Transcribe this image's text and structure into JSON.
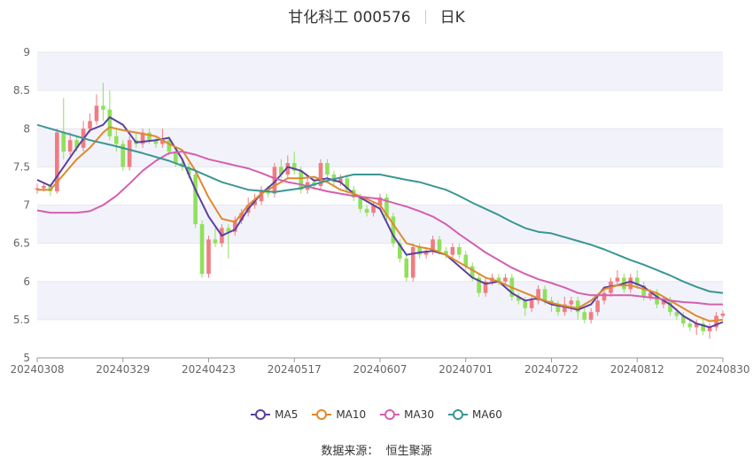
{
  "header": {
    "title": "甘化科工 000576",
    "period": "日K"
  },
  "source": {
    "label": "数据来源：",
    "value": "恒生聚源"
  },
  "colors": {
    "up": "#f07c82",
    "down": "#91e05c",
    "MA5": "#5b3fa0",
    "MA10": "#e0892e",
    "MA30": "#d45fb0",
    "MA60": "#3a9695",
    "band": "#f2f3fa"
  },
  "chart_data": {
    "type": "candlestick",
    "ylim": [
      5,
      9
    ],
    "yticks": [
      5,
      5.5,
      6,
      6.5,
      7,
      7.5,
      8,
      8.5,
      9
    ],
    "xticks": [
      "20240308",
      "20240329",
      "20240423",
      "20240517",
      "20240607",
      "20240701",
      "20240722",
      "20240812",
      "20240830"
    ],
    "legend": [
      {
        "key": "MA5",
        "name": "MA5"
      },
      {
        "key": "MA10",
        "name": "MA10"
      },
      {
        "key": "MA30",
        "name": "MA30"
      },
      {
        "key": "MA60",
        "name": "MA60"
      }
    ],
    "ma": {
      "MA5": [
        [
          0,
          7.33
        ],
        [
          2,
          7.25
        ],
        [
          4,
          7.5
        ],
        [
          6,
          7.75
        ],
        [
          8,
          7.98
        ],
        [
          10,
          8.05
        ],
        [
          11,
          8.15
        ],
        [
          13,
          8.05
        ],
        [
          15,
          7.82
        ],
        [
          18,
          7.85
        ],
        [
          20,
          7.88
        ],
        [
          22,
          7.6
        ],
        [
          24,
          7.2
        ],
        [
          26,
          6.85
        ],
        [
          28,
          6.6
        ],
        [
          30,
          6.68
        ],
        [
          32,
          6.95
        ],
        [
          34,
          7.15
        ],
        [
          36,
          7.3
        ],
        [
          38,
          7.5
        ],
        [
          40,
          7.45
        ],
        [
          42,
          7.32
        ],
        [
          44,
          7.35
        ],
        [
          46,
          7.3
        ],
        [
          48,
          7.15
        ],
        [
          50,
          7.05
        ],
        [
          52,
          6.95
        ],
        [
          54,
          6.6
        ],
        [
          56,
          6.35
        ],
        [
          58,
          6.38
        ],
        [
          60,
          6.4
        ],
        [
          62,
          6.35
        ],
        [
          64,
          6.2
        ],
        [
          66,
          6.05
        ],
        [
          68,
          5.97
        ],
        [
          70,
          6.0
        ],
        [
          72,
          5.85
        ],
        [
          74,
          5.75
        ],
        [
          76,
          5.78
        ],
        [
          78,
          5.7
        ],
        [
          80,
          5.67
        ],
        [
          82,
          5.63
        ],
        [
          84,
          5.7
        ],
        [
          86,
          5.92
        ],
        [
          88,
          5.95
        ],
        [
          90,
          6.0
        ],
        [
          92,
          5.93
        ],
        [
          94,
          5.8
        ],
        [
          96,
          5.7
        ],
        [
          98,
          5.55
        ],
        [
          100,
          5.45
        ],
        [
          102,
          5.4
        ],
        [
          104,
          5.47
        ]
      ],
      "MA10": [
        [
          0,
          7.2
        ],
        [
          2,
          7.2
        ],
        [
          4,
          7.4
        ],
        [
          6,
          7.6
        ],
        [
          8,
          7.75
        ],
        [
          10,
          7.95
        ],
        [
          11,
          8.02
        ],
        [
          13,
          7.98
        ],
        [
          15,
          7.95
        ],
        [
          18,
          7.9
        ],
        [
          20,
          7.8
        ],
        [
          22,
          7.72
        ],
        [
          24,
          7.45
        ],
        [
          26,
          7.1
        ],
        [
          28,
          6.82
        ],
        [
          30,
          6.78
        ],
        [
          32,
          7.0
        ],
        [
          34,
          7.15
        ],
        [
          36,
          7.25
        ],
        [
          38,
          7.35
        ],
        [
          40,
          7.35
        ],
        [
          42,
          7.37
        ],
        [
          44,
          7.3
        ],
        [
          46,
          7.2
        ],
        [
          48,
          7.15
        ],
        [
          50,
          7.08
        ],
        [
          52,
          7.0
        ],
        [
          54,
          6.75
        ],
        [
          56,
          6.5
        ],
        [
          58,
          6.45
        ],
        [
          60,
          6.42
        ],
        [
          62,
          6.35
        ],
        [
          64,
          6.25
        ],
        [
          66,
          6.15
        ],
        [
          68,
          6.05
        ],
        [
          70,
          6.0
        ],
        [
          72,
          5.92
        ],
        [
          74,
          5.85
        ],
        [
          76,
          5.78
        ],
        [
          78,
          5.72
        ],
        [
          80,
          5.68
        ],
        [
          82,
          5.65
        ],
        [
          84,
          5.75
        ],
        [
          86,
          5.9
        ],
        [
          88,
          5.95
        ],
        [
          90,
          5.95
        ],
        [
          92,
          5.9
        ],
        [
          94,
          5.85
        ],
        [
          96,
          5.75
        ],
        [
          98,
          5.65
        ],
        [
          100,
          5.55
        ],
        [
          102,
          5.48
        ],
        [
          104,
          5.5
        ]
      ],
      "MA30": [
        [
          0,
          6.93
        ],
        [
          2,
          6.9
        ],
        [
          6,
          6.9
        ],
        [
          8,
          6.92
        ],
        [
          10,
          7.0
        ],
        [
          12,
          7.12
        ],
        [
          14,
          7.28
        ],
        [
          16,
          7.45
        ],
        [
          18,
          7.58
        ],
        [
          20,
          7.68
        ],
        [
          22,
          7.7
        ],
        [
          24,
          7.66
        ],
        [
          26,
          7.6
        ],
        [
          28,
          7.56
        ],
        [
          30,
          7.52
        ],
        [
          32,
          7.48
        ],
        [
          34,
          7.42
        ],
        [
          36,
          7.35
        ],
        [
          38,
          7.3
        ],
        [
          40,
          7.27
        ],
        [
          42,
          7.22
        ],
        [
          44,
          7.18
        ],
        [
          46,
          7.15
        ],
        [
          48,
          7.12
        ],
        [
          50,
          7.1
        ],
        [
          52,
          7.08
        ],
        [
          54,
          7.03
        ],
        [
          56,
          6.98
        ],
        [
          58,
          6.92
        ],
        [
          60,
          6.85
        ],
        [
          62,
          6.75
        ],
        [
          64,
          6.62
        ],
        [
          66,
          6.5
        ],
        [
          68,
          6.38
        ],
        [
          70,
          6.28
        ],
        [
          72,
          6.18
        ],
        [
          74,
          6.1
        ],
        [
          76,
          6.03
        ],
        [
          78,
          5.98
        ],
        [
          80,
          5.92
        ],
        [
          82,
          5.85
        ],
        [
          84,
          5.82
        ],
        [
          86,
          5.82
        ],
        [
          88,
          5.82
        ],
        [
          90,
          5.82
        ],
        [
          92,
          5.8
        ],
        [
          94,
          5.78
        ],
        [
          96,
          5.75
        ],
        [
          98,
          5.73
        ],
        [
          100,
          5.72
        ],
        [
          102,
          5.7
        ],
        [
          104,
          5.7
        ]
      ],
      "MA60": [
        [
          0,
          8.05
        ],
        [
          4,
          7.95
        ],
        [
          8,
          7.85
        ],
        [
          12,
          7.77
        ],
        [
          16,
          7.68
        ],
        [
          20,
          7.58
        ],
        [
          24,
          7.45
        ],
        [
          28,
          7.3
        ],
        [
          32,
          7.2
        ],
        [
          36,
          7.17
        ],
        [
          40,
          7.22
        ],
        [
          44,
          7.32
        ],
        [
          48,
          7.4
        ],
        [
          52,
          7.4
        ],
        [
          56,
          7.33
        ],
        [
          58,
          7.3
        ],
        [
          60,
          7.25
        ],
        [
          62,
          7.2
        ],
        [
          64,
          7.12
        ],
        [
          66,
          7.03
        ],
        [
          68,
          6.95
        ],
        [
          70,
          6.87
        ],
        [
          72,
          6.78
        ],
        [
          74,
          6.7
        ],
        [
          76,
          6.65
        ],
        [
          78,
          6.63
        ],
        [
          80,
          6.58
        ],
        [
          82,
          6.53
        ],
        [
          84,
          6.48
        ],
        [
          86,
          6.42
        ],
        [
          88,
          6.35
        ],
        [
          90,
          6.28
        ],
        [
          92,
          6.22
        ],
        [
          94,
          6.15
        ],
        [
          96,
          6.08
        ],
        [
          98,
          6.0
        ],
        [
          100,
          5.93
        ],
        [
          102,
          5.87
        ],
        [
          104,
          5.85
        ]
      ]
    },
    "candles": [
      [
        7.2,
        7.22,
        7.28,
        7.15
      ],
      [
        7.22,
        7.25,
        7.3,
        7.18
      ],
      [
        7.25,
        7.18,
        7.28,
        7.12
      ],
      [
        7.18,
        7.95,
        8.0,
        7.15
      ],
      [
        7.95,
        7.7,
        8.4,
        7.6
      ],
      [
        7.7,
        7.85,
        7.95,
        7.65
      ],
      [
        7.85,
        7.75,
        7.9,
        7.7
      ],
      [
        7.75,
        8.0,
        8.1,
        7.7
      ],
      [
        8.0,
        8.1,
        8.2,
        7.95
      ],
      [
        8.1,
        8.3,
        8.45,
        8.05
      ],
      [
        8.3,
        8.25,
        8.6,
        8.1
      ],
      [
        8.25,
        7.9,
        8.5,
        7.85
      ],
      [
        7.9,
        7.8,
        8.0,
        7.7
      ],
      [
        7.8,
        7.5,
        7.85,
        7.45
      ],
      [
        7.5,
        7.85,
        7.9,
        7.45
      ],
      [
        7.85,
        7.8,
        7.95,
        7.75
      ],
      [
        7.8,
        7.95,
        8.0,
        7.75
      ],
      [
        7.95,
        7.85,
        8.0,
        7.8
      ],
      [
        7.85,
        7.8,
        7.9,
        7.75
      ],
      [
        7.8,
        7.85,
        8.0,
        7.75
      ],
      [
        7.85,
        7.7,
        7.9,
        7.65
      ],
      [
        7.7,
        7.55,
        7.75,
        7.5
      ],
      [
        7.55,
        7.5,
        7.6,
        7.45
      ],
      [
        7.5,
        7.4,
        7.55,
        7.35
      ],
      [
        7.4,
        6.75,
        7.45,
        6.7
      ],
      [
        6.75,
        6.1,
        6.8,
        6.05
      ],
      [
        6.1,
        6.55,
        6.6,
        6.05
      ],
      [
        6.55,
        6.5,
        6.7,
        6.45
      ],
      [
        6.5,
        6.7,
        6.75,
        6.45
      ],
      [
        6.7,
        6.65,
        6.75,
        6.3
      ],
      [
        6.65,
        6.8,
        6.85,
        6.6
      ],
      [
        6.8,
        6.9,
        6.95,
        6.75
      ],
      [
        6.9,
        7.0,
        7.1,
        6.85
      ],
      [
        7.0,
        7.05,
        7.15,
        6.95
      ],
      [
        7.05,
        7.2,
        7.25,
        7.0
      ],
      [
        7.2,
        7.15,
        7.25,
        7.1
      ],
      [
        7.15,
        7.5,
        7.55,
        7.1
      ],
      [
        7.5,
        7.4,
        7.6,
        7.35
      ],
      [
        7.4,
        7.55,
        7.65,
        7.35
      ],
      [
        7.55,
        7.45,
        7.7,
        7.4
      ],
      [
        7.45,
        7.2,
        7.5,
        7.15
      ],
      [
        7.2,
        7.3,
        7.35,
        7.15
      ],
      [
        7.3,
        7.25,
        7.35,
        7.2
      ],
      [
        7.25,
        7.55,
        7.6,
        7.2
      ],
      [
        7.55,
        7.4,
        7.6,
        7.35
      ],
      [
        7.4,
        7.3,
        7.45,
        7.25
      ],
      [
        7.3,
        7.35,
        7.4,
        7.25
      ],
      [
        7.35,
        7.2,
        7.4,
        7.15
      ],
      [
        7.2,
        7.1,
        7.25,
        7.05
      ],
      [
        7.1,
        6.95,
        7.15,
        6.9
      ],
      [
        6.95,
        6.9,
        7.0,
        6.85
      ],
      [
        6.9,
        7.0,
        7.05,
        6.85
      ],
      [
        7.0,
        7.1,
        7.15,
        6.95
      ],
      [
        7.1,
        6.85,
        7.15,
        6.8
      ],
      [
        6.85,
        6.5,
        6.9,
        6.45
      ],
      [
        6.5,
        6.3,
        6.55,
        6.25
      ],
      [
        6.3,
        6.05,
        6.35,
        6.0
      ],
      [
        6.05,
        6.45,
        6.5,
        6.0
      ],
      [
        6.45,
        6.35,
        6.5,
        6.3
      ],
      [
        6.35,
        6.4,
        6.45,
        6.3
      ],
      [
        6.4,
        6.55,
        6.6,
        6.35
      ],
      [
        6.55,
        6.4,
        6.6,
        6.35
      ],
      [
        6.4,
        6.35,
        6.45,
        6.3
      ],
      [
        6.35,
        6.45,
        6.5,
        6.3
      ],
      [
        6.45,
        6.35,
        6.5,
        6.3
      ],
      [
        6.35,
        6.2,
        6.4,
        6.15
      ],
      [
        6.2,
        6.05,
        6.25,
        6.0
      ],
      [
        6.05,
        5.85,
        6.1,
        5.8
      ],
      [
        5.85,
        6.0,
        6.05,
        5.8
      ],
      [
        6.0,
        6.05,
        6.1,
        5.95
      ],
      [
        6.05,
        6.0,
        6.1,
        5.95
      ],
      [
        6.0,
        6.05,
        6.1,
        5.95
      ],
      [
        6.05,
        5.8,
        6.1,
        5.75
      ],
      [
        5.8,
        5.75,
        5.85,
        5.7
      ],
      [
        5.75,
        5.65,
        5.8,
        5.55
      ],
      [
        5.65,
        5.75,
        5.8,
        5.6
      ],
      [
        5.75,
        5.9,
        5.95,
        5.7
      ],
      [
        5.9,
        5.75,
        5.95,
        5.7
      ],
      [
        5.75,
        5.7,
        5.8,
        5.6
      ],
      [
        5.7,
        5.6,
        5.75,
        5.55
      ],
      [
        5.6,
        5.7,
        5.8,
        5.55
      ],
      [
        5.7,
        5.75,
        5.8,
        5.6
      ],
      [
        5.75,
        5.6,
        5.8,
        5.5
      ],
      [
        5.6,
        5.5,
        5.65,
        5.45
      ],
      [
        5.5,
        5.6,
        5.65,
        5.45
      ],
      [
        5.6,
        5.75,
        5.8,
        5.55
      ],
      [
        5.75,
        5.85,
        5.9,
        5.7
      ],
      [
        5.85,
        6.0,
        6.05,
        5.8
      ],
      [
        6.0,
        6.05,
        6.15,
        5.95
      ],
      [
        6.05,
        5.9,
        6.1,
        5.85
      ],
      [
        5.9,
        6.05,
        6.1,
        5.85
      ],
      [
        6.05,
        5.95,
        6.15,
        5.9
      ],
      [
        5.95,
        5.8,
        6.0,
        5.75
      ],
      [
        5.8,
        5.85,
        5.9,
        5.75
      ],
      [
        5.85,
        5.7,
        5.9,
        5.65
      ],
      [
        5.7,
        5.75,
        5.8,
        5.65
      ],
      [
        5.75,
        5.6,
        5.8,
        5.55
      ],
      [
        5.6,
        5.55,
        5.65,
        5.5
      ],
      [
        5.55,
        5.45,
        5.6,
        5.4
      ],
      [
        5.45,
        5.4,
        5.5,
        5.35
      ],
      [
        5.4,
        5.45,
        5.5,
        5.3
      ],
      [
        5.45,
        5.35,
        5.5,
        5.3
      ],
      [
        5.35,
        5.4,
        5.45,
        5.25
      ],
      [
        5.4,
        5.55,
        5.6,
        5.35
      ],
      [
        5.55,
        5.58,
        5.62,
        5.52
      ]
    ]
  }
}
